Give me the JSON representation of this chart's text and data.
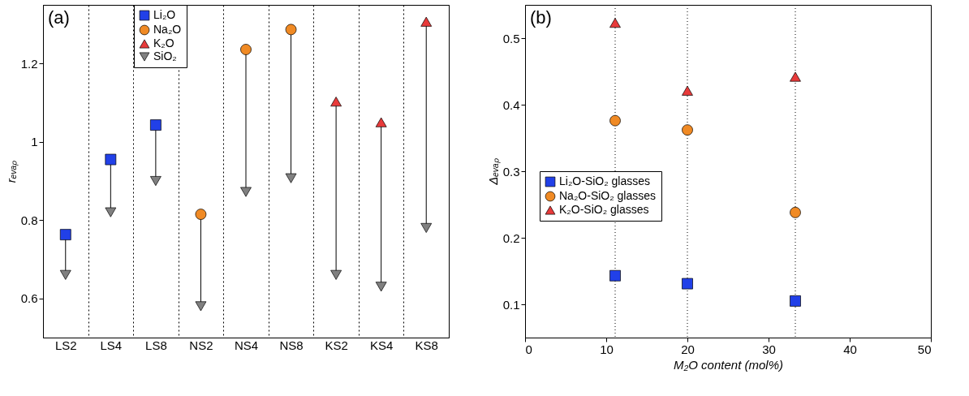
{
  "chart_data": [
    {
      "type": "scatter",
      "ylabel": "rₑᵥₐₚ",
      "categories": [
        "LS2",
        "LS4",
        "LS8",
        "NS2",
        "NS4",
        "NS8",
        "KS2",
        "KS4",
        "KS8"
      ],
      "ylim": [
        0.5,
        1.35
      ],
      "yticks": [
        0.6,
        0.8,
        {
          "value": 1,
          "label": "1"
        },
        1.2
      ],
      "grid": "x",
      "legend": "top left",
      "annotations": [
        "(a)"
      ],
      "series": [
        {
          "name": "Li₂O",
          "color": "#2140e8",
          "marker": "square",
          "values": [
            0.763,
            0.955,
            1.043,
            null,
            null,
            null,
            null,
            null,
            null
          ]
        },
        {
          "name": "Na₂O",
          "color": "#f08a24",
          "marker": "circle",
          "values": [
            null,
            null,
            null,
            0.815,
            1.236,
            1.287,
            null,
            null,
            null
          ]
        },
        {
          "name": "K₂O",
          "color": "#e83a3a",
          "marker": "triangle",
          "values": [
            null,
            null,
            null,
            null,
            null,
            null,
            1.103,
            1.05,
            1.307
          ]
        },
        {
          "name": "SiO₂",
          "color": "#808080",
          "marker": "triangle-down",
          "values": [
            0.66,
            0.82,
            0.9,
            0.58,
            0.872,
            0.907,
            0.66,
            0.63,
            0.78
          ]
        }
      ]
    },
    {
      "type": "scatter",
      "ylabel": "Δₑᵥₐₚ",
      "xlabel": "M₂O content (mol%)",
      "x": [
        11.1,
        20,
        33.3
      ],
      "xlim": [
        0,
        50
      ],
      "xticks": [
        0,
        10,
        20,
        30,
        40,
        50
      ],
      "ylim": [
        0.05,
        0.55
      ],
      "yticks": [
        0.1,
        0.2,
        0.3,
        0.4,
        0.5
      ],
      "legend": "left",
      "annotations": [
        "(b)"
      ],
      "ref_lines": [
        {
          "axis": "x",
          "value": 11.1,
          "color": "#000000",
          "line_style": "dotted"
        },
        {
          "axis": "x",
          "value": 20,
          "color": "#000000",
          "line_style": "dotted"
        },
        {
          "axis": "x",
          "value": 33.3,
          "color": "#000000",
          "line_style": "dotted"
        }
      ],
      "series": [
        {
          "name": "Li₂O-SiO₂ glasses",
          "color": "#2140e8",
          "marker": "square",
          "values": [
            0.143,
            0.131,
            0.105
          ]
        },
        {
          "name": "Na₂O-SiO₂ glasses",
          "color": "#f08a24",
          "marker": "circle",
          "values": [
            0.376,
            0.362,
            0.238
          ]
        },
        {
          "name": "K₂O-SiO₂ glasses",
          "color": "#e83a3a",
          "marker": "triangle",
          "values": [
            0.523,
            0.421,
            0.442
          ]
        }
      ]
    }
  ]
}
